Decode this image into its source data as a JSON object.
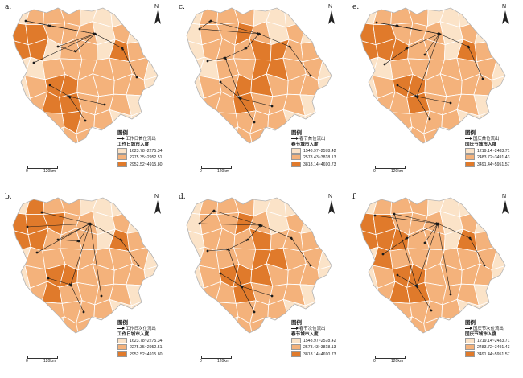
{
  "figure": {
    "north_label": "N",
    "scale_labels": [
      "0",
      "120km"
    ],
    "legend_heading": "图例",
    "colors": {
      "c1": "#fbe3c8",
      "c2": "#f4b27b",
      "c3": "#e07a2b",
      "region": "#cfcfcf",
      "flow": "#1a1a1a"
    },
    "panels": [
      {
        "id": "a",
        "letter": "a.",
        "flow_label": "工作日首位流出",
        "subtitle": "工作日城市入度",
        "classes": [
          "1623.78~2275.34",
          "2275.35~2952.51",
          "2952.52~4915.80"
        ]
      },
      {
        "id": "c1",
        "letter": "c.",
        "flow_label": "春节首位流出",
        "subtitle": "春节城市入度",
        "classes": [
          "1548.97~2578.42",
          "2578.43~3818.13",
          "3818.14~4690.73"
        ]
      },
      {
        "id": "e",
        "letter": "e.",
        "flow_label": "国庆首位流出",
        "subtitle": "国庆节城市入度",
        "classes": [
          "1219.14~2483.71",
          "2483.72~3491.43",
          "3491.44~5951.57"
        ]
      },
      {
        "id": "b",
        "letter": "b.",
        "flow_label": "工作日次位流出",
        "subtitle": "工作日城市入度",
        "classes": [
          "1623.78~2275.34",
          "2275.35~2952.51",
          "2952.52~4915.80"
        ]
      },
      {
        "id": "d",
        "letter": "d.",
        "flow_label": "春节次位流出",
        "subtitle": "春节城市入度",
        "classes": [
          "1548.97~2578.42",
          "2578.43~3818.13",
          "3818.14~4690.73"
        ]
      },
      {
        "id": "f",
        "letter": "f.",
        "flow_label": "国庆节次位流出",
        "subtitle": "国庆节城市入度",
        "classes": [
          "1219.14~2483.71",
          "2483.72~3491.43",
          "3491.44~5951.57"
        ]
      }
    ]
  }
}
